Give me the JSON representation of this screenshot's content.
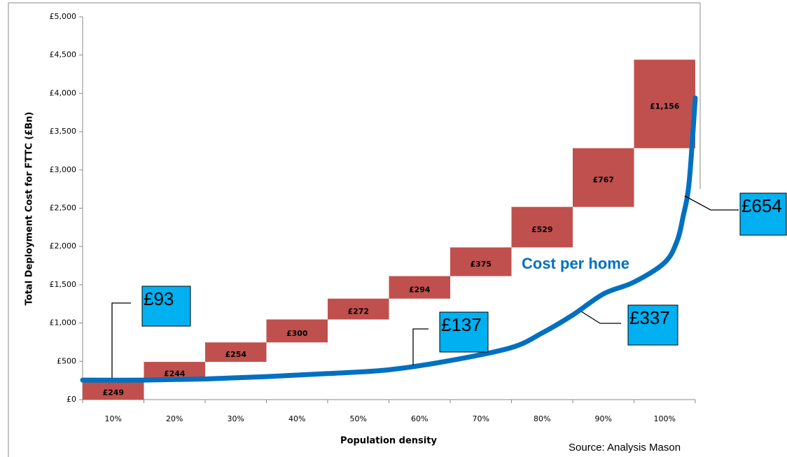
{
  "chart_data": {
    "type": "waterfall",
    "y_label": "Total Deployment Cost for FTTC (£Bn)",
    "x_label": "Population density",
    "source": "Source: Analysis Mason",
    "categories": [
      "10%",
      "20%",
      "30%",
      "40%",
      "50%",
      "60%",
      "70%",
      "80%",
      "90%",
      "100%"
    ],
    "values": [
      249,
      244,
      254,
      300,
      272,
      294,
      375,
      529,
      767,
      1156
    ],
    "value_labels": [
      "£249",
      "£244",
      "£254",
      "£300",
      "£272",
      "£294",
      "£375",
      "£529",
      "£767",
      "£1,156"
    ],
    "color": "#c0504d",
    "ylim": [
      0,
      5000
    ],
    "yticks": [
      {
        "value": 0,
        "label": "£0"
      },
      {
        "value": 500,
        "label": "£500"
      },
      {
        "value": 1000,
        "label": "£1,000"
      },
      {
        "value": 1500,
        "label": "£1,500"
      },
      {
        "value": 2000,
        "label": "£2,000"
      },
      {
        "value": 2500,
        "label": "£2,500"
      },
      {
        "value": 3000,
        "label": "£3,000"
      },
      {
        "value": 3500,
        "label": "£3,500"
      },
      {
        "value": 4000,
        "label": "£4,000"
      },
      {
        "value": 4500,
        "label": "£4,500"
      },
      {
        "value": 5000,
        "label": "£5,000"
      }
    ],
    "xlim": [
      5,
      105
    ],
    "line": {
      "name": "Cost per home",
      "color": "#0070c0",
      "x": [
        5,
        15,
        25,
        35,
        45,
        55,
        65,
        75,
        80,
        85,
        90,
        95,
        100,
        102,
        103,
        104,
        105
      ],
      "values": [
        255,
        255,
        270,
        300,
        340,
        390,
        510,
        680,
        870,
        1105,
        1380,
        1535,
        1790,
        2065,
        2385,
        2840,
        3940
      ]
    },
    "annotations": [
      "£93",
      "£137",
      "£337",
      "£654"
    ],
    "grid": false
  }
}
